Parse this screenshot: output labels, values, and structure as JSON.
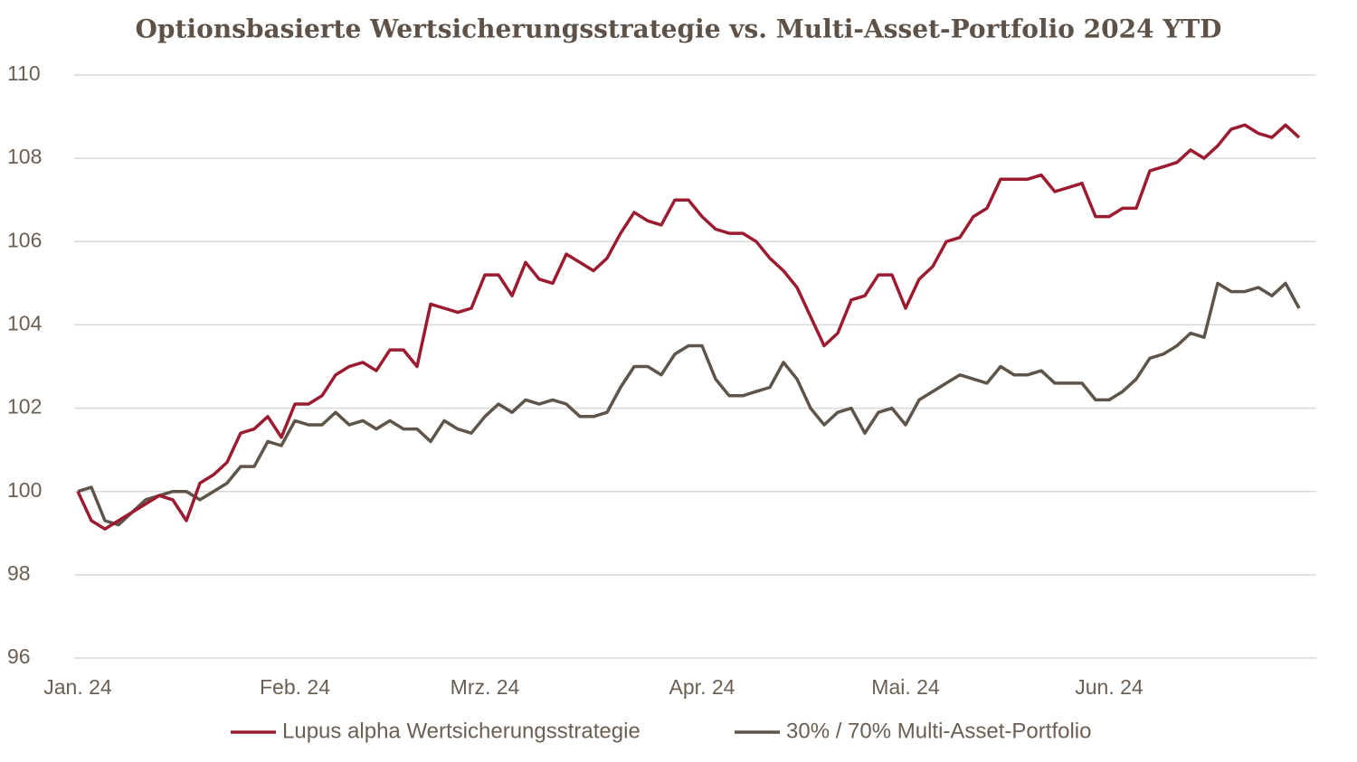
{
  "chart_data": {
    "type": "line",
    "title": "Optionsbasierte Wertsicherungsstrategie vs. Multi-Asset-Portfolio 2024 YTD",
    "categories": [
      "Jan. 24",
      null,
      null,
      null,
      null,
      null,
      null,
      null,
      null,
      null,
      null,
      null,
      null,
      null,
      null,
      null,
      "Feb. 24",
      null,
      null,
      null,
      null,
      null,
      null,
      null,
      null,
      null,
      null,
      null,
      null,
      null,
      "Mrz. 24",
      null,
      null,
      null,
      null,
      null,
      null,
      null,
      null,
      null,
      null,
      null,
      null,
      null,
      null,
      null,
      "Apr. 24",
      null,
      null,
      null,
      null,
      null,
      null,
      null,
      null,
      null,
      null,
      null,
      null,
      null,
      null,
      "Mai. 24",
      null,
      null,
      null,
      null,
      null,
      null,
      null,
      null,
      null,
      null,
      null,
      null,
      null,
      null,
      "Jun. 24",
      null,
      null,
      null,
      null,
      null,
      null,
      null,
      null,
      null,
      null,
      null,
      null,
      null,
      null
    ],
    "series": [
      {
        "name": "Lupus alpha Wertsicherungsstrategie",
        "color": "#9b1b30",
        "values": [
          100,
          99.3,
          99.1,
          99.3,
          99.5,
          99.7,
          99.9,
          99.8,
          99.3,
          100.2,
          100.4,
          100.7,
          101.4,
          101.5,
          101.8,
          101.3,
          102.1,
          102.1,
          102.3,
          102.8,
          103.0,
          103.1,
          102.9,
          103.4,
          103.4,
          103.0,
          104.5,
          104.4,
          104.3,
          104.4,
          105.2,
          105.2,
          104.7,
          105.5,
          105.1,
          105.0,
          105.7,
          105.5,
          105.3,
          105.6,
          106.2,
          106.7,
          106.5,
          106.4,
          107.0,
          107.0,
          106.6,
          106.3,
          106.2,
          106.2,
          106.0,
          105.6,
          105.3,
          104.9,
          104.2,
          103.5,
          103.8,
          104.6,
          104.7,
          105.2,
          105.2,
          104.4,
          105.1,
          105.4,
          106.0,
          106.1,
          106.6,
          106.8,
          107.5,
          107.5,
          107.5,
          107.6,
          107.2,
          107.3,
          107.4,
          106.6,
          106.6,
          106.8,
          106.8,
          107.7,
          107.8,
          107.9,
          108.2,
          108.0,
          108.3,
          108.7,
          108.8,
          108.6,
          108.5,
          108.8,
          108.5
        ]
      },
      {
        "name": "30% / 70% Multi-Asset-Portfolio",
        "color": "#5f5449",
        "values": [
          100,
          100.1,
          99.3,
          99.2,
          99.5,
          99.8,
          99.9,
          100.0,
          100.0,
          99.8,
          100.0,
          100.2,
          100.6,
          100.6,
          101.2,
          101.1,
          101.7,
          101.6,
          101.6,
          101.9,
          101.6,
          101.7,
          101.5,
          101.7,
          101.5,
          101.5,
          101.2,
          101.7,
          101.5,
          101.4,
          101.8,
          102.1,
          101.9,
          102.2,
          102.1,
          102.2,
          102.1,
          101.8,
          101.8,
          101.9,
          102.5,
          103.0,
          103.0,
          102.8,
          103.3,
          103.5,
          103.5,
          102.7,
          102.3,
          102.3,
          102.4,
          102.5,
          103.1,
          102.7,
          102.0,
          101.6,
          101.9,
          102.0,
          101.4,
          101.9,
          102.0,
          101.6,
          102.2,
          102.4,
          102.6,
          102.8,
          102.7,
          102.6,
          103.0,
          102.8,
          102.8,
          102.9,
          102.6,
          102.6,
          102.6,
          102.2,
          102.2,
          102.4,
          102.7,
          103.2,
          103.3,
          103.5,
          103.8,
          103.7,
          105.0,
          104.8,
          104.8,
          104.9,
          104.7,
          105.0,
          104.4
        ]
      }
    ],
    "ylim": [
      96,
      110
    ],
    "yticks": [
      96,
      98,
      100,
      102,
      104,
      106,
      108,
      110
    ],
    "grid": true,
    "legend": "bottom"
  }
}
